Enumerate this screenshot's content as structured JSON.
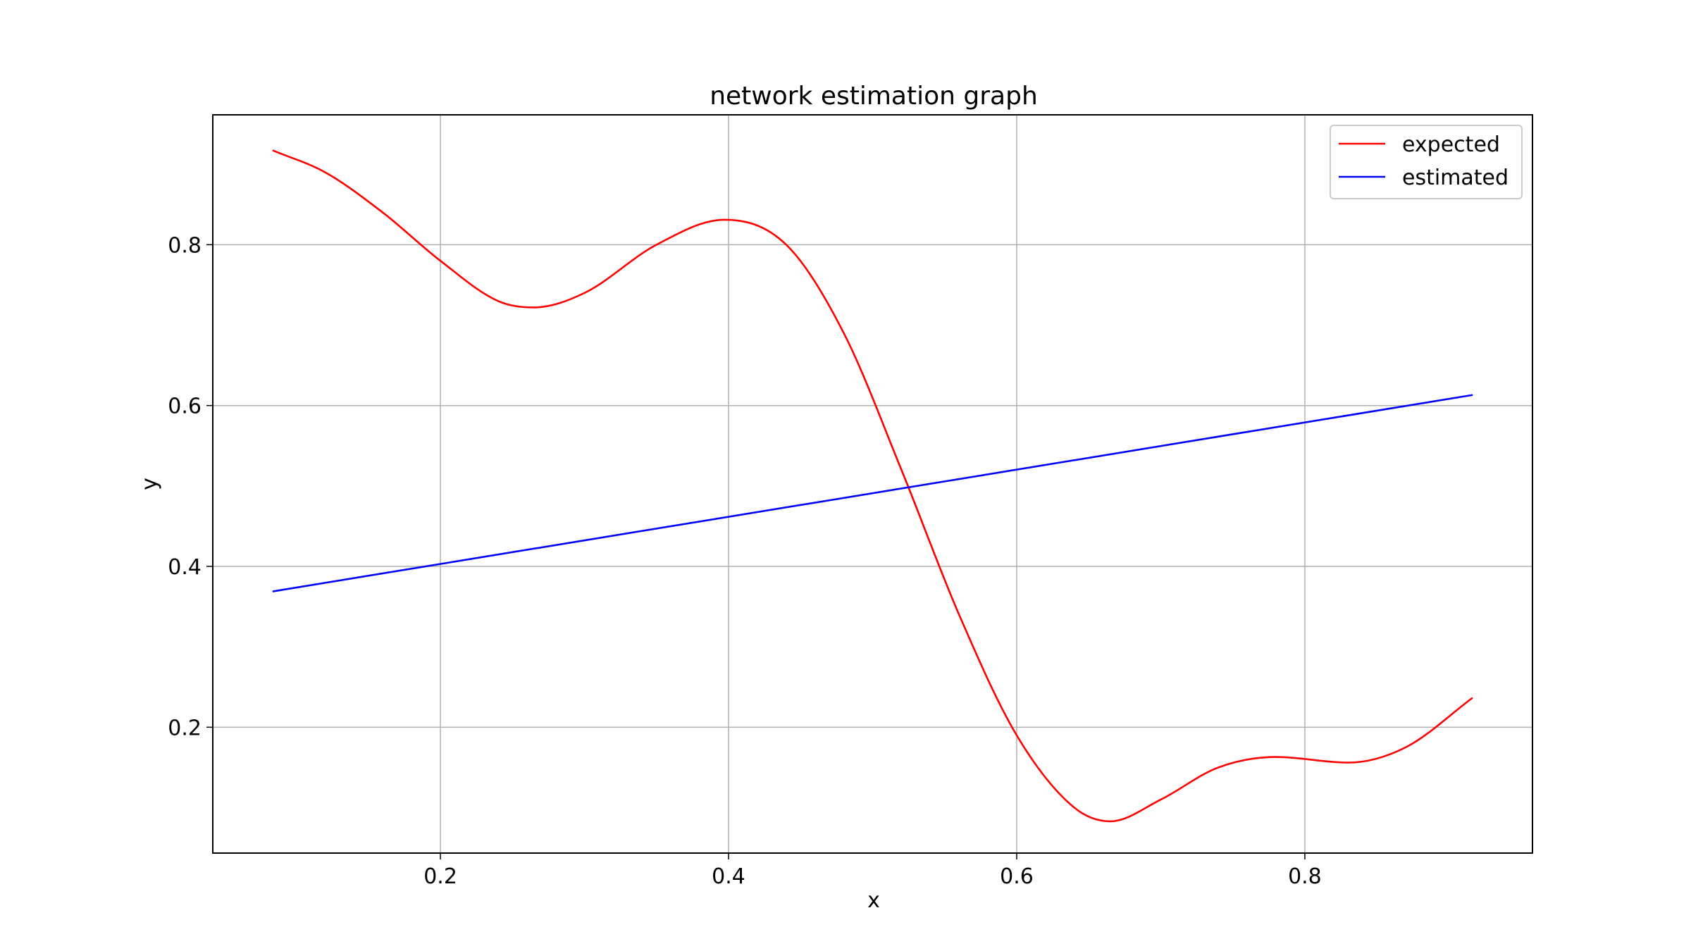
{
  "chart_data": {
    "type": "line",
    "title": "network estimation graph",
    "xlabel": "x",
    "ylabel": "y",
    "xlim": [
      0.042,
      0.958
    ],
    "ylim": [
      0.0435,
      0.9615
    ],
    "x_ticks": [
      0.2,
      0.4,
      0.6,
      0.8
    ],
    "x_tick_labels": [
      "0.2",
      "0.4",
      "0.6",
      "0.8"
    ],
    "y_ticks": [
      0.2,
      0.4,
      0.6,
      0.8
    ],
    "y_tick_labels": [
      "0.2",
      "0.4",
      "0.6",
      "0.8"
    ],
    "grid": true,
    "legend_position": "top-right",
    "series": [
      {
        "name": "expected",
        "color": "#ff0000",
        "x": [
          0.084,
          0.12,
          0.16,
          0.2,
          0.24,
          0.265,
          0.3,
          0.35,
          0.397,
          0.44,
          0.48,
          0.52,
          0.56,
          0.6,
          0.64,
          0.665,
          0.7,
          0.74,
          0.78,
          0.83,
          0.87,
          0.916
        ],
        "y": [
          0.917,
          0.89,
          0.84,
          0.78,
          0.73,
          0.722,
          0.74,
          0.8,
          0.831,
          0.8,
          0.69,
          0.52,
          0.34,
          0.19,
          0.1,
          0.083,
          0.11,
          0.15,
          0.163,
          0.156,
          0.175,
          0.236
        ]
      },
      {
        "name": "estimated",
        "color": "#0000ff",
        "x": [
          0.084,
          0.916
        ],
        "y": [
          0.369,
          0.613
        ]
      }
    ]
  }
}
